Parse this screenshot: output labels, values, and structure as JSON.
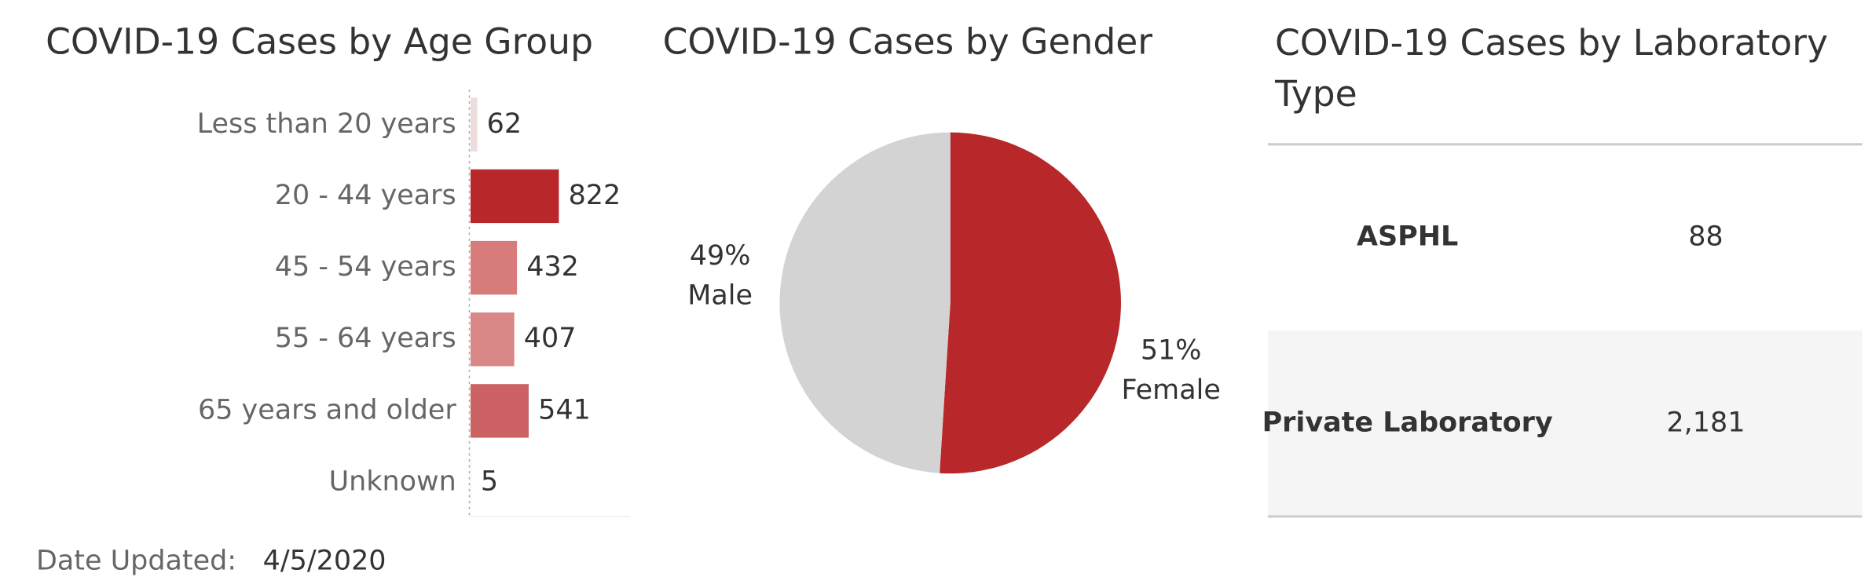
{
  "chart_data": [
    {
      "type": "bar",
      "title": "COVID-19 Cases by Age Group",
      "categories": [
        "Less than 20 years",
        "20 - 44 years",
        "45 - 54 years",
        "55 - 64 years",
        "65 years and older",
        "Unknown"
      ],
      "values": [
        62,
        822,
        432,
        407,
        541,
        5
      ],
      "colors": [
        "#ecdcdc",
        "#b8282b",
        "#d77b7b",
        "#d98686",
        "#cd6264",
        "#f2e8e8"
      ]
    },
    {
      "type": "pie",
      "title": "COVID-19 Cases by Gender",
      "categories": [
        "Female",
        "Male"
      ],
      "values": [
        51,
        49
      ],
      "value_labels": [
        "51%",
        "49%"
      ],
      "colors": [
        "#b8282b",
        "#d3d3d3"
      ]
    }
  ],
  "table": {
    "title": "COVID-19 Cases by Laboratory Type",
    "rows": [
      [
        "ASPHL",
        "88"
      ],
      [
        "Private Laboratory",
        "2,181"
      ]
    ]
  },
  "footer": {
    "label": "Date Updated:",
    "value": "4/5/2020"
  }
}
